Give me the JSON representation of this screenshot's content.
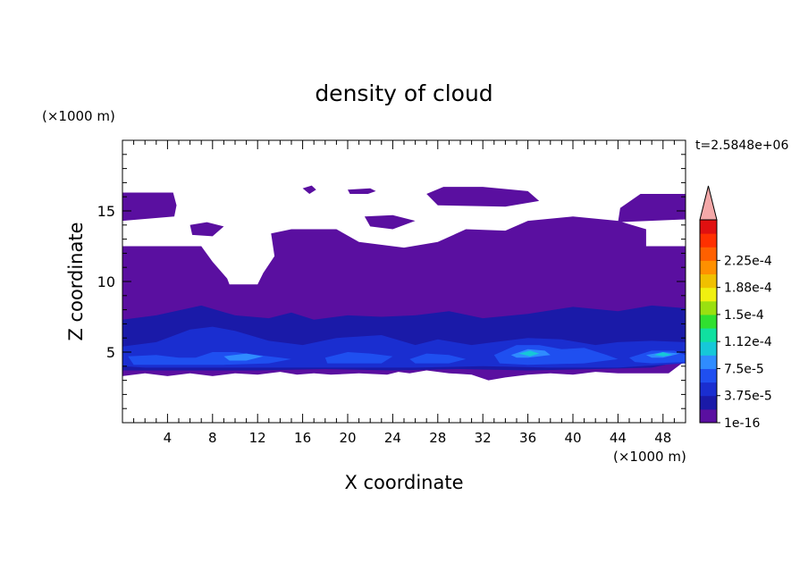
{
  "chart_data": {
    "type": "heatmap",
    "title": "density of cloud",
    "xlabel": "X coordinate",
    "ylabel": "Z coordinate",
    "x_unit": "(×1000 m)",
    "y_unit": "(×1000 m)",
    "time_label": "t=2.5848e+06",
    "xlim": [
      0,
      50
    ],
    "ylim": [
      0,
      20
    ],
    "x_ticks": [
      4,
      8,
      12,
      16,
      20,
      24,
      28,
      32,
      36,
      40,
      44,
      48
    ],
    "y_ticks": [
      5,
      10,
      15
    ],
    "colorbar": {
      "levels": [
        "1e-16",
        "3.75e-5",
        "7.5e-5",
        "1.12e-4",
        "1.5e-4",
        "1.88e-4",
        "2.25e-4"
      ],
      "colors": [
        "#5a0fa0",
        "#1a1aa8",
        "#1a2ed0",
        "#1f4ff0",
        "#2f8cff",
        "#16c8d8",
        "#10e0a0",
        "#30e030",
        "#9ae010",
        "#f0f010",
        "#f0c000",
        "#ff9000",
        "#ff6000",
        "#ff3000",
        "#e01010"
      ],
      "extend_color": "#f4a8a8"
    },
    "regions": [
      {
        "name": "upper cloud layer",
        "level": 0,
        "outline": [
          [
            0,
            16.3
          ],
          [
            4.5,
            16.3
          ],
          [
            4.8,
            15.4
          ],
          [
            4.6,
            14.6
          ],
          [
            0,
            14.3
          ]
        ]
      },
      {
        "name": "upper cloud layer",
        "level": 0,
        "outline": [
          [
            46,
            16.2
          ],
          [
            50,
            16.2
          ],
          [
            50,
            14.4
          ],
          [
            44,
            14.2
          ],
          [
            44.2,
            15.2
          ]
        ]
      },
      {
        "name": "upper cloud patch",
        "level": 0,
        "outline": [
          [
            27,
            16.2
          ],
          [
            28.5,
            16.7
          ],
          [
            32,
            16.7
          ],
          [
            36,
            16.4
          ],
          [
            37,
            15.7
          ],
          [
            34,
            15.3
          ],
          [
            28,
            15.4
          ]
        ]
      },
      {
        "name": "upper cloud patch",
        "level": 0,
        "outline": [
          [
            16,
            16.6
          ],
          [
            16.8,
            16.8
          ],
          [
            17.2,
            16.5
          ],
          [
            16.6,
            16.2
          ]
        ]
      },
      {
        "name": "upper cloud patch",
        "level": 0,
        "outline": [
          [
            20,
            16.5
          ],
          [
            22,
            16.6
          ],
          [
            22.5,
            16.4
          ],
          [
            21.8,
            16.2
          ],
          [
            20.2,
            16.2
          ]
        ]
      },
      {
        "name": "upper cloud patch",
        "level": 0,
        "outline": [
          [
            6,
            14
          ],
          [
            7.5,
            14.2
          ],
          [
            9,
            13.9
          ],
          [
            8,
            13.2
          ],
          [
            6.2,
            13.3
          ]
        ]
      },
      {
        "name": "upper cloud patch",
        "level": 0,
        "outline": [
          [
            21.5,
            14.6
          ],
          [
            24,
            14.7
          ],
          [
            26,
            14.3
          ],
          [
            24,
            13.7
          ],
          [
            22,
            13.9
          ]
        ]
      },
      {
        "name": "main cloud deck",
        "level": 0,
        "outline": [
          [
            0,
            12.5
          ],
          [
            7,
            12.5
          ],
          [
            8,
            11.4
          ],
          [
            9.3,
            10.2
          ],
          [
            9.5,
            9.8
          ],
          [
            12,
            9.8
          ],
          [
            12.5,
            10.6
          ],
          [
            13.5,
            11.8
          ],
          [
            13.2,
            13.4
          ],
          [
            15,
            13.7
          ],
          [
            19,
            13.7
          ],
          [
            21,
            12.8
          ],
          [
            25,
            12.4
          ],
          [
            28,
            12.8
          ],
          [
            30.5,
            13.7
          ],
          [
            34,
            13.6
          ],
          [
            36,
            14.3
          ],
          [
            40,
            14.6
          ],
          [
            44,
            14.3
          ],
          [
            46.5,
            13.7
          ],
          [
            46.5,
            12.5
          ],
          [
            50,
            12.5
          ],
          [
            50,
            4.4
          ],
          [
            48.5,
            3.5
          ],
          [
            44,
            3.5
          ],
          [
            42,
            3.6
          ],
          [
            40,
            3.4
          ],
          [
            38,
            3.5
          ],
          [
            36,
            3.4
          ],
          [
            34,
            3.2
          ],
          [
            32.5,
            3
          ],
          [
            31,
            3.4
          ],
          [
            29,
            3.5
          ],
          [
            27,
            3.7
          ],
          [
            25.5,
            3.5
          ],
          [
            24.5,
            3.6
          ],
          [
            23.5,
            3.4
          ],
          [
            21,
            3.5
          ],
          [
            18.5,
            3.4
          ],
          [
            17,
            3.5
          ],
          [
            15.5,
            3.4
          ],
          [
            14,
            3.6
          ],
          [
            12,
            3.4
          ],
          [
            10,
            3.5
          ],
          [
            8,
            3.3
          ],
          [
            6,
            3.5
          ],
          [
            4,
            3.3
          ],
          [
            2,
            3.5
          ],
          [
            0,
            3.3
          ]
        ]
      },
      {
        "name": "lower cloud band",
        "level": 1,
        "outline": [
          [
            0,
            7.3
          ],
          [
            3,
            7.6
          ],
          [
            7,
            8.3
          ],
          [
            10,
            7.6
          ],
          [
            13,
            7.4
          ],
          [
            15,
            7.8
          ],
          [
            17,
            7.3
          ],
          [
            20,
            7.6
          ],
          [
            23,
            7.5
          ],
          [
            26,
            7.6
          ],
          [
            29,
            7.9
          ],
          [
            32,
            7.4
          ],
          [
            36,
            7.7
          ],
          [
            40,
            8.2
          ],
          [
            44,
            7.9
          ],
          [
            47,
            8.3
          ],
          [
            50,
            8.1
          ],
          [
            50,
            4.4
          ],
          [
            47,
            3.9
          ],
          [
            42,
            3.8
          ],
          [
            36,
            3.7
          ],
          [
            30,
            3.8
          ],
          [
            24,
            3.7
          ],
          [
            18,
            3.8
          ],
          [
            12,
            3.7
          ],
          [
            6,
            3.7
          ],
          [
            0,
            3.7
          ]
        ]
      },
      {
        "name": "convective cell",
        "level": 2,
        "outline": [
          [
            0,
            5.4
          ],
          [
            3,
            5.7
          ],
          [
            6,
            6.6
          ],
          [
            8,
            6.8
          ],
          [
            10,
            6.5
          ],
          [
            13,
            5.8
          ],
          [
            16,
            5.5
          ],
          [
            19,
            6
          ],
          [
            23,
            6.2
          ],
          [
            26,
            5.5
          ],
          [
            28,
            5.9
          ],
          [
            31,
            5.5
          ],
          [
            33,
            5.7
          ],
          [
            36,
            6
          ],
          [
            39,
            5.9
          ],
          [
            42,
            5.5
          ],
          [
            44,
            5.7
          ],
          [
            47,
            5.8
          ],
          [
            50,
            5.7
          ],
          [
            50,
            4.2
          ],
          [
            44,
            3.9
          ],
          [
            38,
            3.9
          ],
          [
            32,
            4
          ],
          [
            26,
            3.9
          ],
          [
            20,
            3.9
          ],
          [
            14,
            3.9
          ],
          [
            8,
            3.9
          ],
          [
            2,
            3.9
          ],
          [
            0,
            4
          ]
        ]
      },
      {
        "name": "convective core",
        "level": 3,
        "outline": [
          [
            0.5,
            4.7
          ],
          [
            3,
            4.8
          ],
          [
            5,
            4.6
          ],
          [
            6.5,
            4.6
          ],
          [
            8,
            5
          ],
          [
            10,
            5
          ],
          [
            12,
            4.8
          ],
          [
            14,
            4.6
          ],
          [
            15,
            4.5
          ],
          [
            13,
            4.2
          ],
          [
            9,
            4.1
          ],
          [
            5,
            4.1
          ],
          [
            1,
            4.1
          ]
        ]
      },
      {
        "name": "convective core",
        "level": 3,
        "outline": [
          [
            18,
            4.6
          ],
          [
            20,
            5
          ],
          [
            22,
            4.9
          ],
          [
            24,
            4.7
          ],
          [
            23,
            4.2
          ],
          [
            20,
            4.2
          ],
          [
            18.2,
            4.2
          ]
        ]
      },
      {
        "name": "convective core",
        "level": 3,
        "outline": [
          [
            25.5,
            4.5
          ],
          [
            27,
            4.9
          ],
          [
            29,
            4.8
          ],
          [
            30.5,
            4.5
          ],
          [
            29,
            4.2
          ],
          [
            26,
            4.2
          ]
        ]
      },
      {
        "name": "convective core",
        "level": 3,
        "outline": [
          [
            33,
            4.8
          ],
          [
            35,
            5.5
          ],
          [
            37,
            5.5
          ],
          [
            39,
            5.2
          ],
          [
            41,
            5.3
          ],
          [
            43,
            4.8
          ],
          [
            44,
            4.5
          ],
          [
            41,
            4.2
          ],
          [
            36,
            4.1
          ],
          [
            33.5,
            4.2
          ]
        ]
      },
      {
        "name": "convective core",
        "level": 3,
        "outline": [
          [
            45,
            4.6
          ],
          [
            47,
            5.1
          ],
          [
            49,
            5.1
          ],
          [
            50,
            4.8
          ],
          [
            50,
            4.3
          ],
          [
            47,
            4.2
          ],
          [
            45.5,
            4.3
          ]
        ]
      },
      {
        "name": "cloud maximum",
        "level": 4,
        "outline": [
          [
            34.5,
            4.8
          ],
          [
            36,
            5.2
          ],
          [
            37.5,
            5.1
          ],
          [
            38,
            4.8
          ],
          [
            36,
            4.6
          ],
          [
            35,
            4.6
          ]
        ]
      },
      {
        "name": "cloud maximum",
        "level": 4,
        "outline": [
          [
            46.5,
            4.8
          ],
          [
            48,
            5
          ],
          [
            49.5,
            4.9
          ],
          [
            48,
            4.6
          ],
          [
            47,
            4.6
          ]
        ]
      },
      {
        "name": "cloud maximum",
        "level": 4,
        "outline": [
          [
            9,
            4.7
          ],
          [
            11,
            4.9
          ],
          [
            12.5,
            4.7
          ],
          [
            11,
            4.4
          ],
          [
            9.5,
            4.4
          ]
        ]
      },
      {
        "name": "cloud peak",
        "level": 5,
        "outline": [
          [
            35.2,
            4.9
          ],
          [
            36.2,
            5.1
          ],
          [
            37,
            4.9
          ],
          [
            36.2,
            4.7
          ]
        ]
      },
      {
        "name": "cloud peak",
        "level": 5,
        "outline": [
          [
            47.2,
            4.8
          ],
          [
            48,
            5
          ],
          [
            48.8,
            4.8
          ],
          [
            48,
            4.7
          ]
        ]
      }
    ]
  }
}
